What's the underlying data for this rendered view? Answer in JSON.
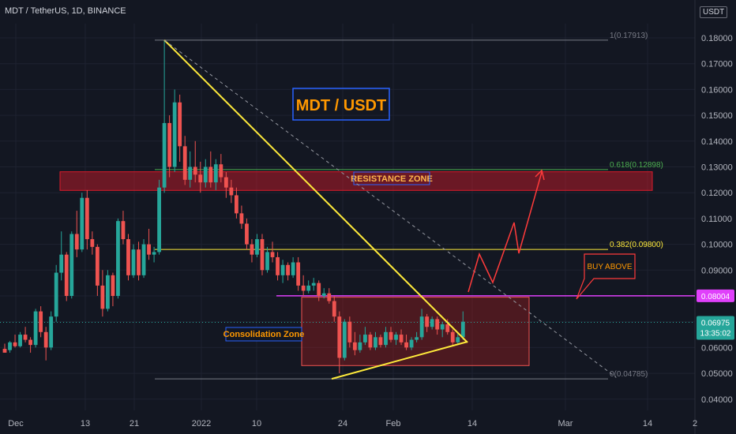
{
  "header": {
    "title": "MDT / TetherUS, 1D, BINANCE",
    "currency": "USDT"
  },
  "colors": {
    "background": "#131722",
    "up": "#26a69a",
    "down": "#ef5350",
    "resistance_zone": "#d81b2a",
    "consolidation_zone": "#b71c1c",
    "trendline": "#ffeb3b",
    "fib_green": "#4caf50",
    "fib_yellow": "#ffeb3b",
    "buy_line": "#e040fb",
    "arrow": "#ff3b3b",
    "title_box": "#2962ff",
    "title_text": "#ff9800"
  },
  "chart_data": {
    "type": "candlestick",
    "title": "MDT / USDT",
    "y_ticks": [
      0.04,
      0.05,
      0.06,
      0.07,
      0.08,
      0.09,
      0.1,
      0.11,
      0.12,
      0.13,
      0.14,
      0.15,
      0.16,
      0.17,
      0.18
    ],
    "y_tick_labels": [
      "0.04000",
      "0.05000",
      "0.06000",
      "0.07000",
      "0.08000",
      "0.09000",
      "0.10000",
      "0.11000",
      "0.12000",
      "0.13000",
      "0.14000",
      "0.15000",
      "0.16000",
      "0.17000",
      "0.18000"
    ],
    "x_ticks": [
      "Dec",
      "13",
      "21",
      "2022",
      "10",
      "24",
      "Feb",
      "14",
      "Mar",
      "14",
      "2"
    ],
    "ylim": [
      0.035,
      0.19
    ],
    "fib_levels": [
      {
        "label": "1(0.17913)",
        "value": 0.17913
      },
      {
        "label": "0.618(0.12898)",
        "value": 0.12898
      },
      {
        "label": "0.382(0.09800)",
        "value": 0.098
      },
      {
        "label": "0(0.04785)",
        "value": 0.04785
      }
    ],
    "resistance_zone": {
      "label": "RESISTANCE ZONE",
      "low": 0.1215,
      "high": 0.1275
    },
    "consolidation_zone": {
      "label": "Consolidation Zone",
      "low": 0.053,
      "high": 0.0795
    },
    "buy_above": {
      "label": "BUY ABOVE",
      "value": 0.08004,
      "badge": "0.08004"
    },
    "last_price": {
      "value": 0.06975,
      "label": "0.06975",
      "countdown": "13:35:02"
    },
    "candles": [
      [
        0.0595,
        0.0615,
        0.058,
        0.058
      ],
      [
        0.059,
        0.0625,
        0.058,
        0.062
      ],
      [
        0.062,
        0.065,
        0.06,
        0.0605
      ],
      [
        0.0605,
        0.066,
        0.06,
        0.065
      ],
      [
        0.065,
        0.068,
        0.062,
        0.063
      ],
      [
        0.063,
        0.064,
        0.058,
        0.061
      ],
      [
        0.061,
        0.075,
        0.06,
        0.074
      ],
      [
        0.074,
        0.076,
        0.064,
        0.066
      ],
      [
        0.066,
        0.068,
        0.055,
        0.06
      ],
      [
        0.06,
        0.074,
        0.059,
        0.072
      ],
      [
        0.072,
        0.092,
        0.07,
        0.089
      ],
      [
        0.089,
        0.105,
        0.086,
        0.096
      ],
      [
        0.096,
        0.097,
        0.078,
        0.08
      ],
      [
        0.08,
        0.105,
        0.079,
        0.104
      ],
      [
        0.104,
        0.113,
        0.095,
        0.098
      ],
      [
        0.098,
        0.12,
        0.097,
        0.118
      ],
      [
        0.118,
        0.121,
        0.098,
        0.102
      ],
      [
        0.102,
        0.105,
        0.096,
        0.099
      ],
      [
        0.099,
        0.1,
        0.08,
        0.084
      ],
      [
        0.084,
        0.09,
        0.072,
        0.075
      ],
      [
        0.075,
        0.09,
        0.074,
        0.088
      ],
      [
        0.088,
        0.089,
        0.076,
        0.08
      ],
      [
        0.08,
        0.11,
        0.079,
        0.109
      ],
      [
        0.109,
        0.113,
        0.1,
        0.102
      ],
      [
        0.102,
        0.104,
        0.086,
        0.088
      ],
      [
        0.088,
        0.1,
        0.087,
        0.098
      ],
      [
        0.098,
        0.101,
        0.086,
        0.088
      ],
      [
        0.088,
        0.102,
        0.087,
        0.1
      ],
      [
        0.1,
        0.106,
        0.094,
        0.096
      ],
      [
        0.096,
        0.099,
        0.093,
        0.097
      ],
      [
        0.097,
        0.125,
        0.096,
        0.122
      ],
      [
        0.122,
        0.179,
        0.12,
        0.147
      ],
      [
        0.147,
        0.15,
        0.126,
        0.13
      ],
      [
        0.13,
        0.16,
        0.128,
        0.155
      ],
      [
        0.155,
        0.158,
        0.132,
        0.138
      ],
      [
        0.138,
        0.142,
        0.123,
        0.125
      ],
      [
        0.125,
        0.136,
        0.122,
        0.13
      ],
      [
        0.13,
        0.14,
        0.124,
        0.127
      ],
      [
        0.127,
        0.132,
        0.12,
        0.124
      ],
      [
        0.124,
        0.133,
        0.122,
        0.13
      ],
      [
        0.13,
        0.136,
        0.122,
        0.124
      ],
      [
        0.124,
        0.133,
        0.121,
        0.131
      ],
      [
        0.131,
        0.135,
        0.124,
        0.126
      ],
      [
        0.126,
        0.128,
        0.118,
        0.122
      ],
      [
        0.122,
        0.125,
        0.116,
        0.119
      ],
      [
        0.119,
        0.122,
        0.11,
        0.112
      ],
      [
        0.112,
        0.115,
        0.106,
        0.108
      ],
      [
        0.108,
        0.11,
        0.098,
        0.1
      ],
      [
        0.1,
        0.102,
        0.093,
        0.096
      ],
      [
        0.096,
        0.104,
        0.095,
        0.102
      ],
      [
        0.102,
        0.104,
        0.088,
        0.09
      ],
      [
        0.09,
        0.099,
        0.089,
        0.097
      ],
      [
        0.097,
        0.101,
        0.093,
        0.095
      ],
      [
        0.095,
        0.097,
        0.086,
        0.088
      ],
      [
        0.088,
        0.094,
        0.085,
        0.092
      ],
      [
        0.092,
        0.093,
        0.086,
        0.088
      ],
      [
        0.088,
        0.095,
        0.087,
        0.093
      ],
      [
        0.093,
        0.095,
        0.082,
        0.084
      ],
      [
        0.084,
        0.088,
        0.08,
        0.082
      ],
      [
        0.082,
        0.086,
        0.081,
        0.084
      ],
      [
        0.084,
        0.087,
        0.082,
        0.085
      ],
      [
        0.085,
        0.086,
        0.078,
        0.08
      ],
      [
        0.08,
        0.083,
        0.079,
        0.081
      ],
      [
        0.081,
        0.083,
        0.077,
        0.078
      ],
      [
        0.078,
        0.08,
        0.07,
        0.072
      ],
      [
        0.072,
        0.074,
        0.05,
        0.056
      ],
      [
        0.056,
        0.071,
        0.055,
        0.07
      ],
      [
        0.07,
        0.072,
        0.06,
        0.062
      ],
      [
        0.062,
        0.066,
        0.057,
        0.059
      ],
      [
        0.059,
        0.065,
        0.058,
        0.062
      ],
      [
        0.062,
        0.068,
        0.061,
        0.065
      ],
      [
        0.065,
        0.066,
        0.059,
        0.06
      ],
      [
        0.06,
        0.066,
        0.059,
        0.064
      ],
      [
        0.064,
        0.065,
        0.06,
        0.061
      ],
      [
        0.061,
        0.068,
        0.06,
        0.066
      ],
      [
        0.066,
        0.068,
        0.062,
        0.063
      ],
      [
        0.063,
        0.066,
        0.061,
        0.065
      ],
      [
        0.065,
        0.067,
        0.061,
        0.062
      ],
      [
        0.062,
        0.065,
        0.059,
        0.06
      ],
      [
        0.06,
        0.064,
        0.059,
        0.063
      ],
      [
        0.063,
        0.066,
        0.062,
        0.064
      ],
      [
        0.064,
        0.075,
        0.063,
        0.072
      ],
      [
        0.072,
        0.073,
        0.066,
        0.068
      ],
      [
        0.068,
        0.072,
        0.067,
        0.071
      ],
      [
        0.071,
        0.072,
        0.065,
        0.067
      ],
      [
        0.067,
        0.07,
        0.064,
        0.069
      ],
      [
        0.069,
        0.071,
        0.065,
        0.066
      ],
      [
        0.066,
        0.067,
        0.061,
        0.062
      ],
      [
        0.062,
        0.066,
        0.061,
        0.064
      ],
      [
        0.064,
        0.074,
        0.063,
        0.07
      ]
    ]
  }
}
